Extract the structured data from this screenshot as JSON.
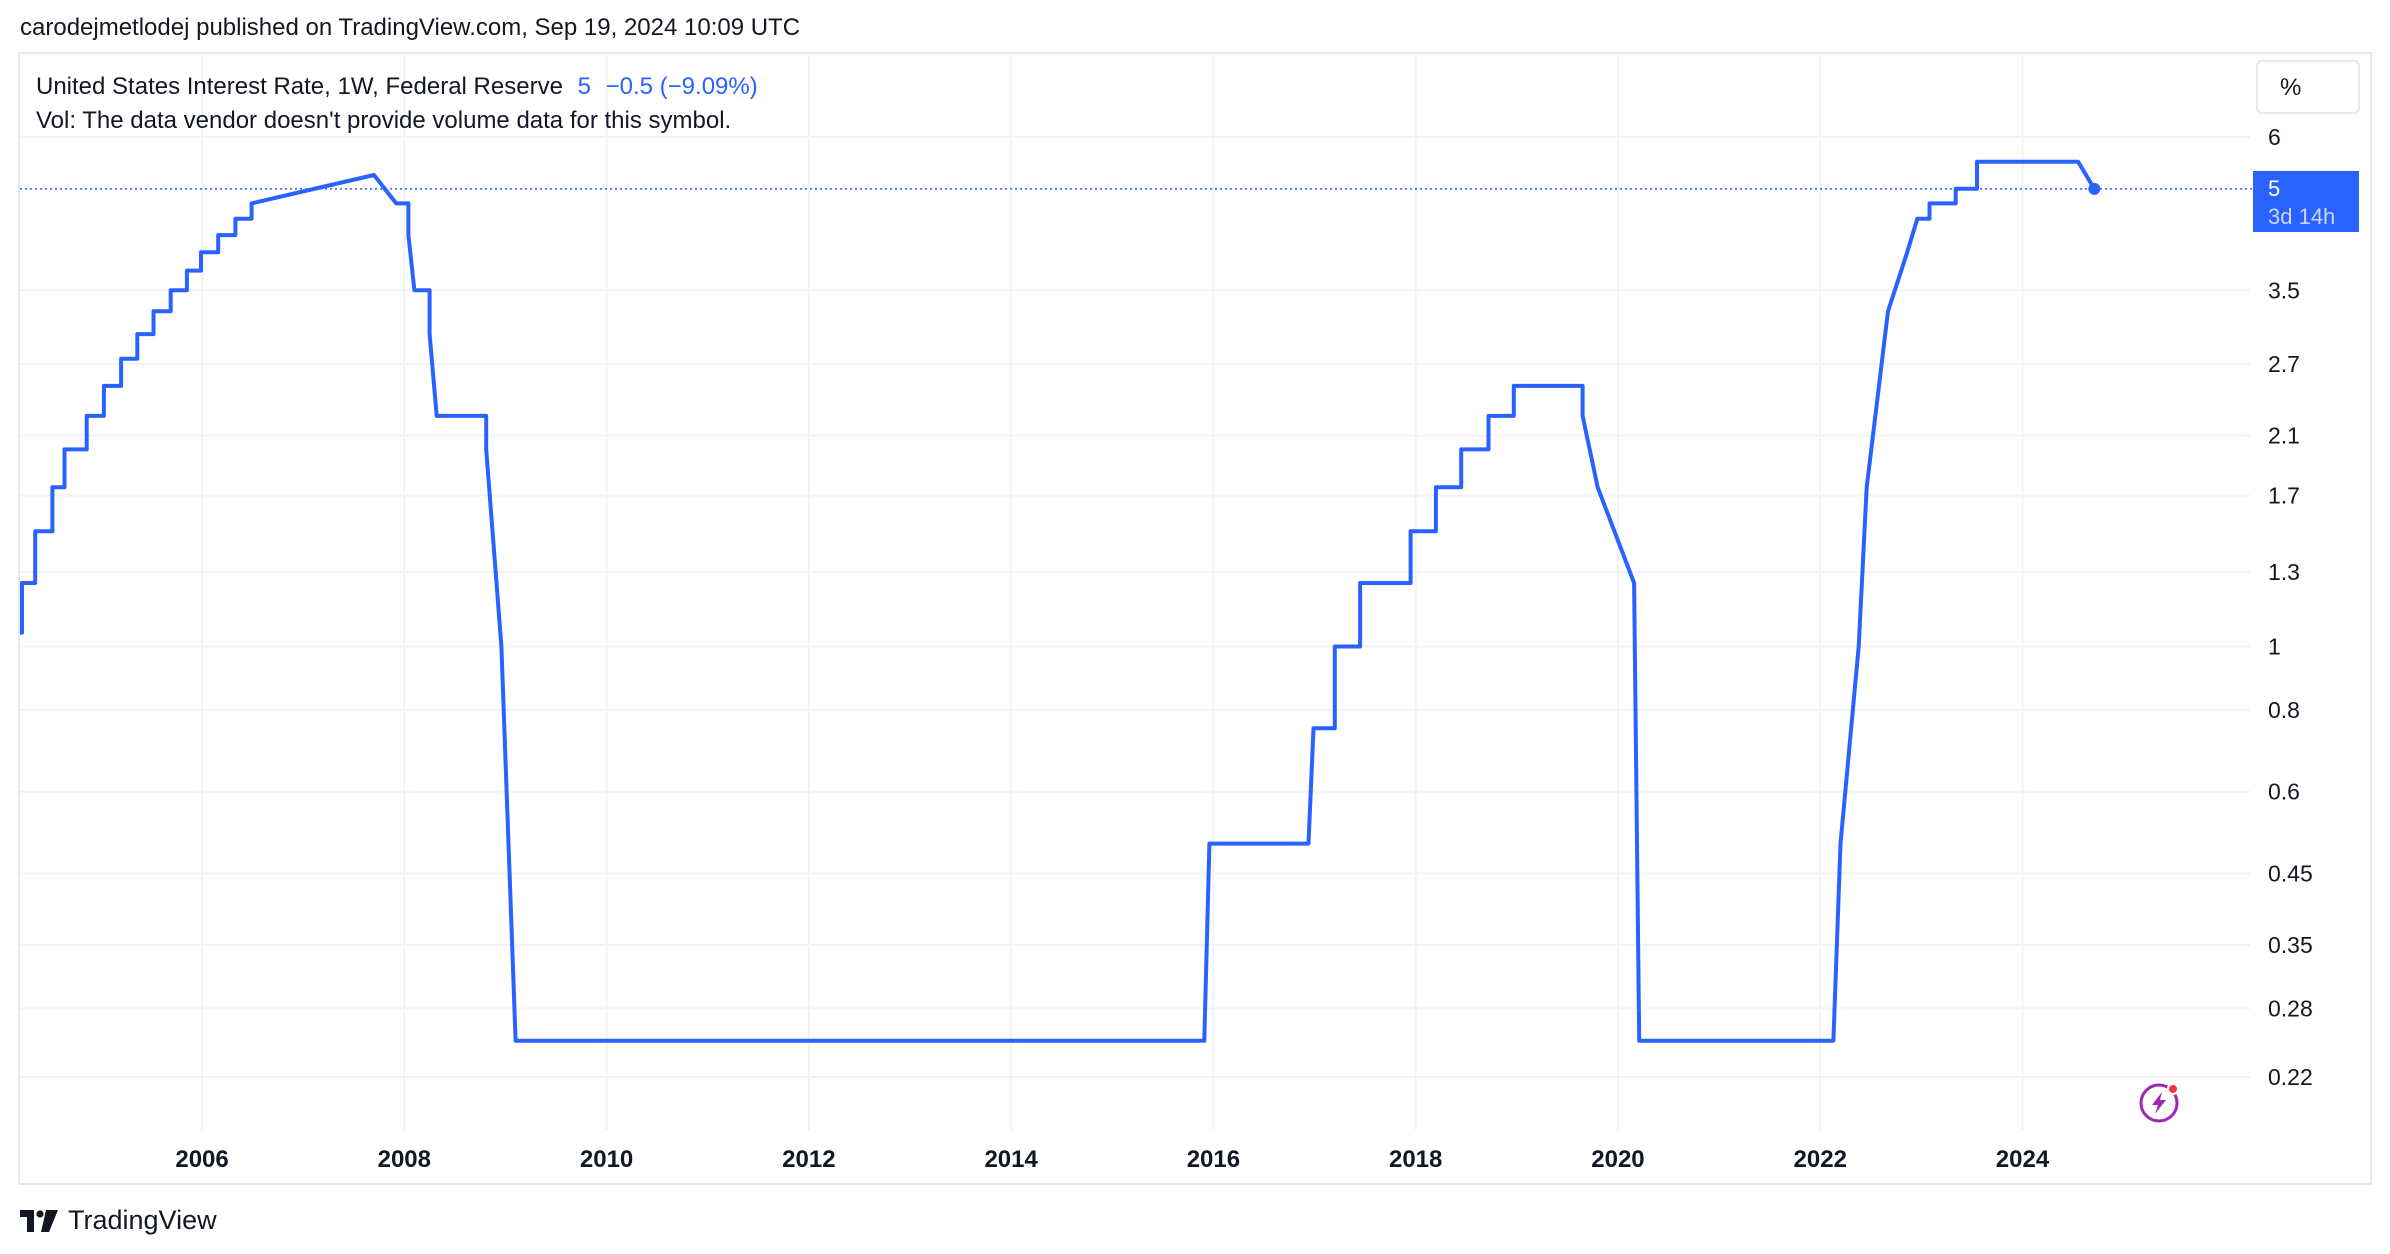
{
  "header": {
    "published_line": "carodejmetlodej published on TradingView.com, Sep 19, 2024 10:09 UTC"
  },
  "legend": {
    "symbol": "United States Interest Rate, 1W, Federal Reserve",
    "last_value": "5",
    "change": "−0.5 (−9.09%)",
    "volume_note": "Vol: The data vendor doesn't provide volume data for this symbol."
  },
  "price_scale": {
    "mode_label": "%",
    "last_price_label": "5",
    "countdown_label": "3d 14h"
  },
  "footer": {
    "brand": "TradingView"
  },
  "colors": {
    "line": "#2962ff",
    "grid": "#f0f3fa",
    "text": "#131722",
    "event_icon": "#9c27b0"
  },
  "icons": {
    "event": "lightning-event-icon",
    "logo": "tradingview-logo-icon"
  },
  "chart_data": {
    "type": "line",
    "title": "United States Interest Rate, 1W, Federal Reserve",
    "y_scale": "log",
    "ylim": [
      0.19,
      7.1
    ],
    "xlim": [
      2004.2,
      2026.2
    ],
    "grid": true,
    "legend_placement": "top-left",
    "y_ticks": [
      "6",
      "3.5",
      "2.7",
      "2.1",
      "1.7",
      "1.3",
      "1",
      "0.8",
      "0.6",
      "0.45",
      "0.35",
      "0.28",
      "0.22"
    ],
    "x_ticks": [
      "2006",
      "2008",
      "2010",
      "2012",
      "2014",
      "2016",
      "2018",
      "2020",
      "2022",
      "2024"
    ],
    "series": [
      {
        "x": [
          2004.2,
          2004.22,
          2004.35,
          2004.52,
          2004.64,
          2004.86,
          2005.03,
          2005.2,
          2005.36,
          2005.52,
          2005.69,
          2005.85,
          2005.99,
          2006.16,
          2006.33,
          2006.49,
          2007.7,
          2007.92,
          2008.04,
          2008.1,
          2008.25,
          2008.32,
          2008.81,
          2008.96,
          2009.1,
          2015.91,
          2015.96,
          2016.94,
          2016.99,
          2017.2,
          2017.45,
          2017.95,
          2018.2,
          2018.45,
          2018.72,
          2018.97,
          2019.55,
          2019.65,
          2019.8,
          2020.16,
          2020.21,
          2022.13,
          2022.2,
          2022.38,
          2022.46,
          2022.67,
          2022.86,
          2022.96,
          2023.08,
          2023.34,
          2023.55,
          2024.55,
          2024.71
        ],
        "y": [
          1.05,
          1.25,
          1.5,
          1.75,
          2.0,
          2.25,
          2.5,
          2.75,
          3.0,
          3.25,
          3.5,
          3.75,
          4.0,
          4.25,
          4.5,
          4.75,
          5.25,
          4.75,
          4.25,
          3.5,
          3.0,
          2.25,
          2.0,
          1.0,
          0.25,
          0.25,
          0.5,
          0.5,
          0.75,
          1.0,
          1.25,
          1.5,
          1.75,
          2.0,
          2.25,
          2.5,
          2.5,
          2.25,
          1.75,
          1.25,
          0.25,
          0.25,
          0.5,
          1.0,
          1.75,
          3.25,
          4.0,
          4.5,
          4.75,
          5.0,
          5.5,
          5.5,
          5.0
        ],
        "step": [
          true,
          true,
          true,
          true,
          true,
          true,
          true,
          true,
          true,
          true,
          true,
          true,
          true,
          true,
          true,
          false,
          false,
          true,
          false,
          true,
          false,
          true,
          false,
          false,
          true,
          false,
          true,
          false,
          true,
          true,
          true,
          true,
          true,
          true,
          true,
          false,
          true,
          false,
          false,
          false,
          true,
          false,
          false,
          false,
          false,
          false,
          false,
          true,
          true,
          true,
          true,
          false,
          false
        ]
      }
    ]
  }
}
